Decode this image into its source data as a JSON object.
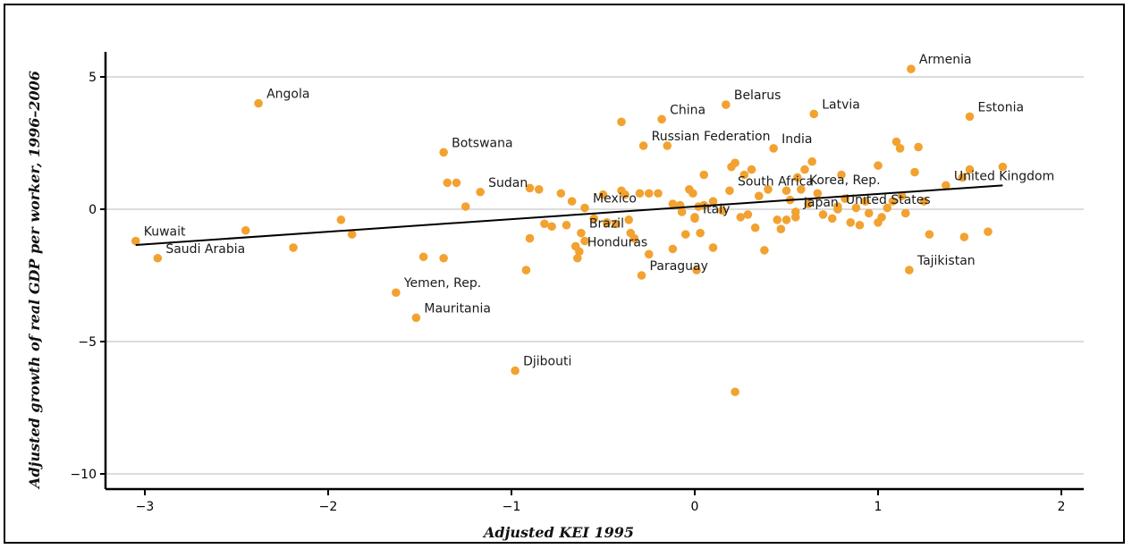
{
  "chart_data": {
    "type": "scatter",
    "title": "",
    "xlabel": "Adjusted KEI 1995",
    "ylabel": "Adjusted growth of real GDP per worker, 1996–2006",
    "xlim": [
      -3.1,
      2.1
    ],
    "ylim": [
      -10.6,
      6.0
    ],
    "x_ticks": [
      -3,
      -2,
      -1,
      0,
      1,
      2
    ],
    "x_tick_labels": [
      "−3",
      "−2",
      "−1",
      "0",
      "1",
      "2"
    ],
    "y_ticks": [
      5,
      0,
      -5,
      -10
    ],
    "y_tick_labels": [
      "5",
      "0",
      "−5",
      "−10"
    ],
    "grid": "horizontal",
    "point_color": "#F2A230",
    "line_color": "#000000",
    "trend_line": {
      "x": [
        -3.05,
        1.68
      ],
      "y": [
        -1.35,
        0.9
      ]
    },
    "labeled_points": [
      {
        "label": "Kuwait",
        "x": -3.05,
        "y": -1.2
      },
      {
        "label": "Saudi Arabia",
        "x": -2.93,
        "y": -1.85
      },
      {
        "label": "Angola",
        "x": -2.38,
        "y": 4.0
      },
      {
        "label": "Botswana",
        "x": -1.37,
        "y": 2.15
      },
      {
        "label": "Sudan",
        "x": -1.17,
        "y": 0.65
      },
      {
        "label": "Yemen, Rep.",
        "x": -1.63,
        "y": -3.15
      },
      {
        "label": "Mauritania",
        "x": -1.52,
        "y": -4.1
      },
      {
        "label": "Djibouti",
        "x": -0.98,
        "y": -6.1
      },
      {
        "label": "Mexico",
        "x": -0.6,
        "y": 0.05
      },
      {
        "label": "Brazil",
        "x": -0.62,
        "y": -0.9
      },
      {
        "label": "Honduras",
        "x": -0.63,
        "y": -1.6
      },
      {
        "label": "Paraguay",
        "x": -0.29,
        "y": -2.5
      },
      {
        "label": "China",
        "x": -0.18,
        "y": 3.4
      },
      {
        "label": "Russian Federation",
        "x": -0.28,
        "y": 2.4
      },
      {
        "label": "Belarus",
        "x": 0.17,
        "y": 3.95
      },
      {
        "label": "India",
        "x": 0.43,
        "y": 2.3
      },
      {
        "label": "South Africa",
        "x": 0.19,
        "y": 0.7
      },
      {
        "label": "Italy",
        "x": 0.0,
        "y": -0.35
      },
      {
        "label": "Latvia",
        "x": 0.65,
        "y": 3.6
      },
      {
        "label": "Korea, Rep.",
        "x": 0.58,
        "y": 0.75
      },
      {
        "label": "Japan",
        "x": 0.55,
        "y": -0.1
      },
      {
        "label": "United States",
        "x": 0.78,
        "y": 0.0
      },
      {
        "label": "Armenia",
        "x": 1.18,
        "y": 5.3
      },
      {
        "label": "Estonia",
        "x": 1.5,
        "y": 3.5
      },
      {
        "label": "United Kingdom",
        "x": 1.37,
        "y": 0.9
      },
      {
        "label": "Tajikistan",
        "x": 1.17,
        "y": -2.3
      }
    ],
    "points": [
      [
        -2.45,
        -0.8
      ],
      [
        -2.19,
        -1.45
      ],
      [
        -1.93,
        -0.4
      ],
      [
        -1.87,
        -0.95
      ],
      [
        -1.48,
        -1.8
      ],
      [
        -1.35,
        1.0
      ],
      [
        -1.3,
        1.0
      ],
      [
        -1.25,
        0.1
      ],
      [
        -1.37,
        -1.85
      ],
      [
        -0.9,
        0.8
      ],
      [
        -0.85,
        0.75
      ],
      [
        -0.92,
        -2.3
      ],
      [
        -0.9,
        -1.1
      ],
      [
        -0.82,
        -0.55
      ],
      [
        -0.78,
        -0.65
      ],
      [
        -0.73,
        0.6
      ],
      [
        -0.7,
        -0.6
      ],
      [
        -0.67,
        0.3
      ],
      [
        -0.65,
        -1.4
      ],
      [
        -0.64,
        -1.85
      ],
      [
        -0.6,
        -1.2
      ],
      [
        -0.55,
        -0.35
      ],
      [
        -0.5,
        0.55
      ],
      [
        -0.48,
        -0.5
      ],
      [
        -0.43,
        -0.55
      ],
      [
        -0.4,
        0.7
      ],
      [
        -0.4,
        3.3
      ],
      [
        -0.38,
        0.55
      ],
      [
        -0.36,
        -0.4
      ],
      [
        -0.35,
        -0.9
      ],
      [
        -0.33,
        -1.1
      ],
      [
        -0.3,
        0.6
      ],
      [
        -0.25,
        -1.7
      ],
      [
        -0.25,
        0.6
      ],
      [
        -0.2,
        0.6
      ],
      [
        -0.15,
        2.4
      ],
      [
        -0.12,
        -1.5
      ],
      [
        -0.12,
        0.2
      ],
      [
        -0.08,
        0.15
      ],
      [
        -0.07,
        -0.1
      ],
      [
        -0.05,
        -0.95
      ],
      [
        -0.03,
        0.75
      ],
      [
        -0.01,
        0.6
      ],
      [
        0.0,
        -0.3
      ],
      [
        0.01,
        -2.3
      ],
      [
        0.02,
        0.1
      ],
      [
        0.03,
        -0.9
      ],
      [
        0.05,
        1.3
      ],
      [
        0.05,
        0.15
      ],
      [
        0.1,
        -1.45
      ],
      [
        0.1,
        0.3
      ],
      [
        0.15,
        -0.05
      ],
      [
        0.2,
        1.6
      ],
      [
        0.22,
        1.75
      ],
      [
        0.25,
        -0.3
      ],
      [
        0.27,
        1.3
      ],
      [
        0.29,
        -0.2
      ],
      [
        0.31,
        1.5
      ],
      [
        0.33,
        -0.7
      ],
      [
        0.35,
        0.5
      ],
      [
        0.38,
        -1.55
      ],
      [
        0.4,
        0.75
      ],
      [
        0.45,
        -0.4
      ],
      [
        0.47,
        -0.75
      ],
      [
        0.5,
        0.7
      ],
      [
        0.5,
        -0.4
      ],
      [
        0.52,
        0.35
      ],
      [
        0.55,
        -0.3
      ],
      [
        0.56,
        1.2
      ],
      [
        0.6,
        1.5
      ],
      [
        0.62,
        0.2
      ],
      [
        0.64,
        1.8
      ],
      [
        0.67,
        0.6
      ],
      [
        0.7,
        -0.2
      ],
      [
        0.75,
        -0.35
      ],
      [
        0.78,
        0.1
      ],
      [
        0.8,
        1.3
      ],
      [
        0.82,
        0.4
      ],
      [
        0.85,
        -0.5
      ],
      [
        0.88,
        0.05
      ],
      [
        0.9,
        -0.6
      ],
      [
        0.93,
        0.3
      ],
      [
        0.95,
        -0.15
      ],
      [
        1.0,
        1.65
      ],
      [
        1.0,
        -0.5
      ],
      [
        1.02,
        -0.3
      ],
      [
        1.05,
        0.05
      ],
      [
        1.08,
        0.3
      ],
      [
        1.1,
        2.55
      ],
      [
        1.12,
        2.3
      ],
      [
        1.13,
        0.5
      ],
      [
        1.15,
        -0.15
      ],
      [
        1.2,
        1.4
      ],
      [
        1.22,
        2.35
      ],
      [
        1.25,
        0.3
      ],
      [
        1.28,
        -0.95
      ],
      [
        1.46,
        1.2
      ],
      [
        1.47,
        -1.05
      ],
      [
        1.5,
        1.5
      ],
      [
        1.6,
        -0.85
      ],
      [
        1.68,
        1.6
      ],
      [
        0.22,
        -6.9
      ]
    ]
  }
}
